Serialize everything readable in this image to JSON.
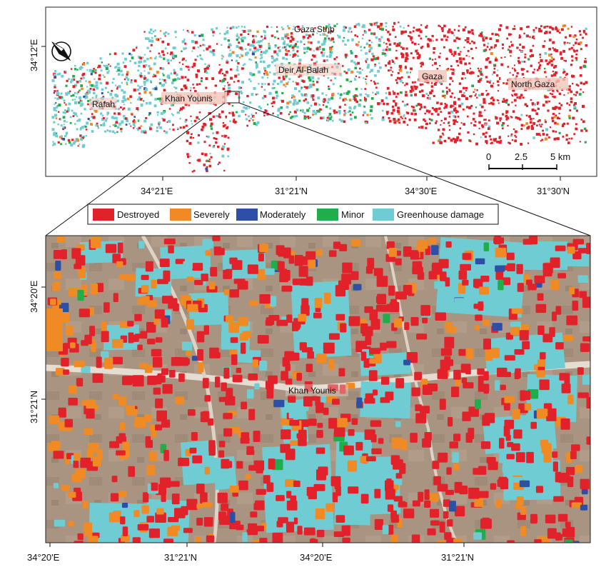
{
  "overview_map": {
    "title": "Gaza Strip",
    "regions": [
      {
        "name": "Rafah"
      },
      {
        "name": "Khan Younis"
      },
      {
        "name": "Deir Al-Balah"
      },
      {
        "name": "Gaza"
      },
      {
        "name": "North Gaza"
      }
    ],
    "scale_bar": {
      "ticks": [
        "0",
        "2.5",
        "5 km"
      ]
    },
    "left_axis_label": "34°12'E",
    "bottom_axis_labels": [
      "34°21'E",
      "31°21'N",
      "34°30'E",
      "31°30'N"
    ],
    "north_arrow": "north-arrow-icon"
  },
  "legend": {
    "items": [
      {
        "label": "Destroyed",
        "color": "#e2222a"
      },
      {
        "label": "Severely",
        "color": "#f08a24"
      },
      {
        "label": "Moderately",
        "color": "#2e4fa6"
      },
      {
        "label": "Minor",
        "color": "#1fae4b"
      },
      {
        "label": "Greenhouse damage",
        "color": "#6fccd3"
      }
    ]
  },
  "detail_map": {
    "label": "Khan Younis",
    "left_axis_labels": [
      "34°20'E",
      "31°21'N"
    ],
    "bottom_axis_labels": [
      "34°20'E",
      "31°21'N",
      "34°20'E",
      "31°21'N"
    ]
  }
}
